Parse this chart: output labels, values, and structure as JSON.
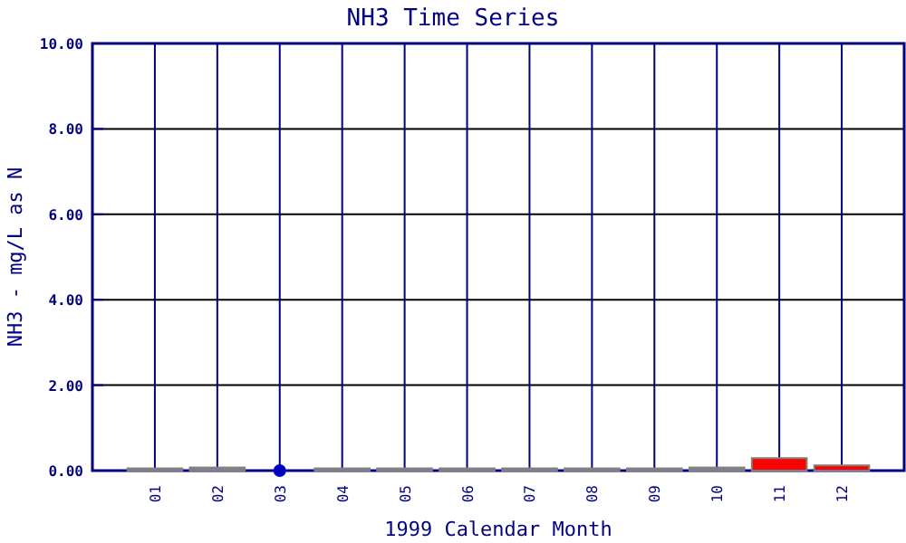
{
  "chart_data": {
    "type": "bar",
    "title": "NH3 Time Series",
    "xlabel": "1999 Calendar Month",
    "ylabel": "NH3 - mg/L as N",
    "categories": [
      "01",
      "02",
      "03",
      "04",
      "05",
      "06",
      "07",
      "08",
      "09",
      "10",
      "11",
      "12"
    ],
    "series": [
      {
        "colors": [
          "#808080",
          "#808080",
          "#808080",
          "#808080",
          "#808080",
          "#808080",
          "#808080",
          "#808080",
          "#808080",
          "#808080",
          "#ff0000",
          "#ff0000"
        ],
        "values": [
          0.01,
          0.03,
          null,
          0.01,
          0.01,
          0.01,
          0.01,
          0.01,
          0.01,
          0.03,
          0.25,
          0.08
        ]
      },
      {
        "type": "scatter",
        "color": "#0000c0",
        "x": [
          "03"
        ],
        "values": [
          0
        ]
      }
    ],
    "ylim": [
      0,
      10
    ],
    "yticks": [
      {
        "value": 0,
        "label": "0.00"
      },
      {
        "value": 2,
        "label": "2.00"
      },
      {
        "value": 4,
        "label": "4.00"
      },
      {
        "value": 6,
        "label": "6.00"
      },
      {
        "value": 8,
        "label": "8.00"
      },
      {
        "value": 10,
        "label": "10.00"
      }
    ],
    "grid": true,
    "marker": "circle"
  }
}
